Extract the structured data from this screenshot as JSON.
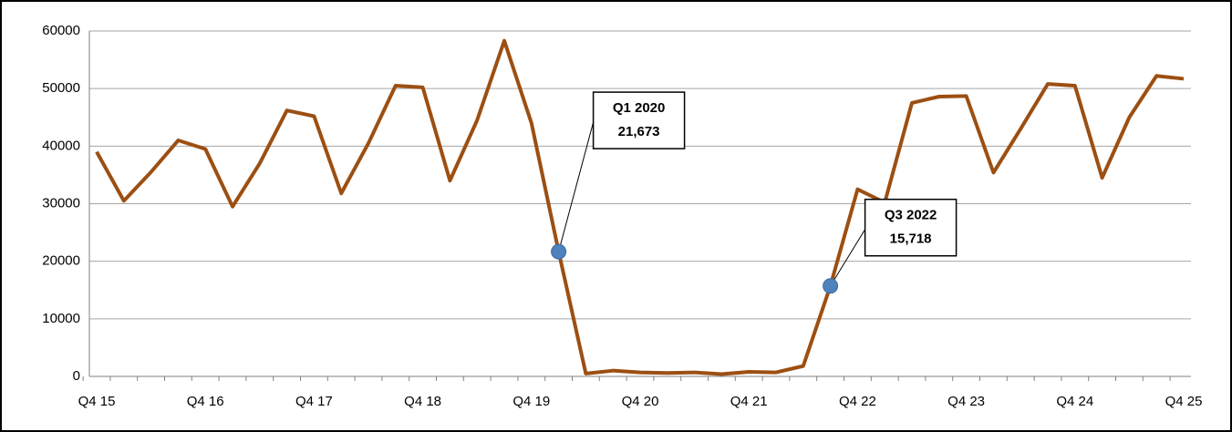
{
  "chart_data": {
    "type": "line",
    "categories": [
      "Q4 15",
      null,
      null,
      null,
      "Q4 16",
      null,
      null,
      null,
      "Q4 17",
      null,
      null,
      null,
      "Q4 18",
      null,
      null,
      null,
      "Q4 19",
      null,
      null,
      null,
      "Q4 20",
      null,
      null,
      null,
      "Q4 21",
      null,
      null,
      null,
      "Q4 22",
      null,
      null,
      null,
      "Q4 23",
      null,
      null,
      null,
      "Q4 24",
      null,
      null,
      null,
      "Q4 25"
    ],
    "values": [
      39000,
      30500,
      35500,
      41000,
      39500,
      29500,
      37000,
      46200,
      45200,
      31800,
      40500,
      50500,
      50200,
      34000,
      44500,
      58300,
      44000,
      21673,
      500,
      1000,
      700,
      600,
      700,
      400,
      800,
      700,
      1800,
      15718,
      32500,
      30200,
      47500,
      48600,
      48700,
      35400,
      43000,
      50800,
      50500,
      34500,
      45000,
      52200,
      51700
    ],
    "color": "#9c4f12",
    "ylim": [
      0,
      60000
    ],
    "yticks": [
      0,
      10000,
      20000,
      30000,
      40000,
      50000,
      60000
    ],
    "grid": true,
    "annotations": [
      {
        "text": "Q1 2020",
        "value": 21673,
        "value_label": "21,673",
        "color": "#4f81bd"
      },
      {
        "text": "Q3 2022",
        "value": 15718,
        "value_label": "15,718",
        "color": "#4f81bd"
      }
    ]
  }
}
